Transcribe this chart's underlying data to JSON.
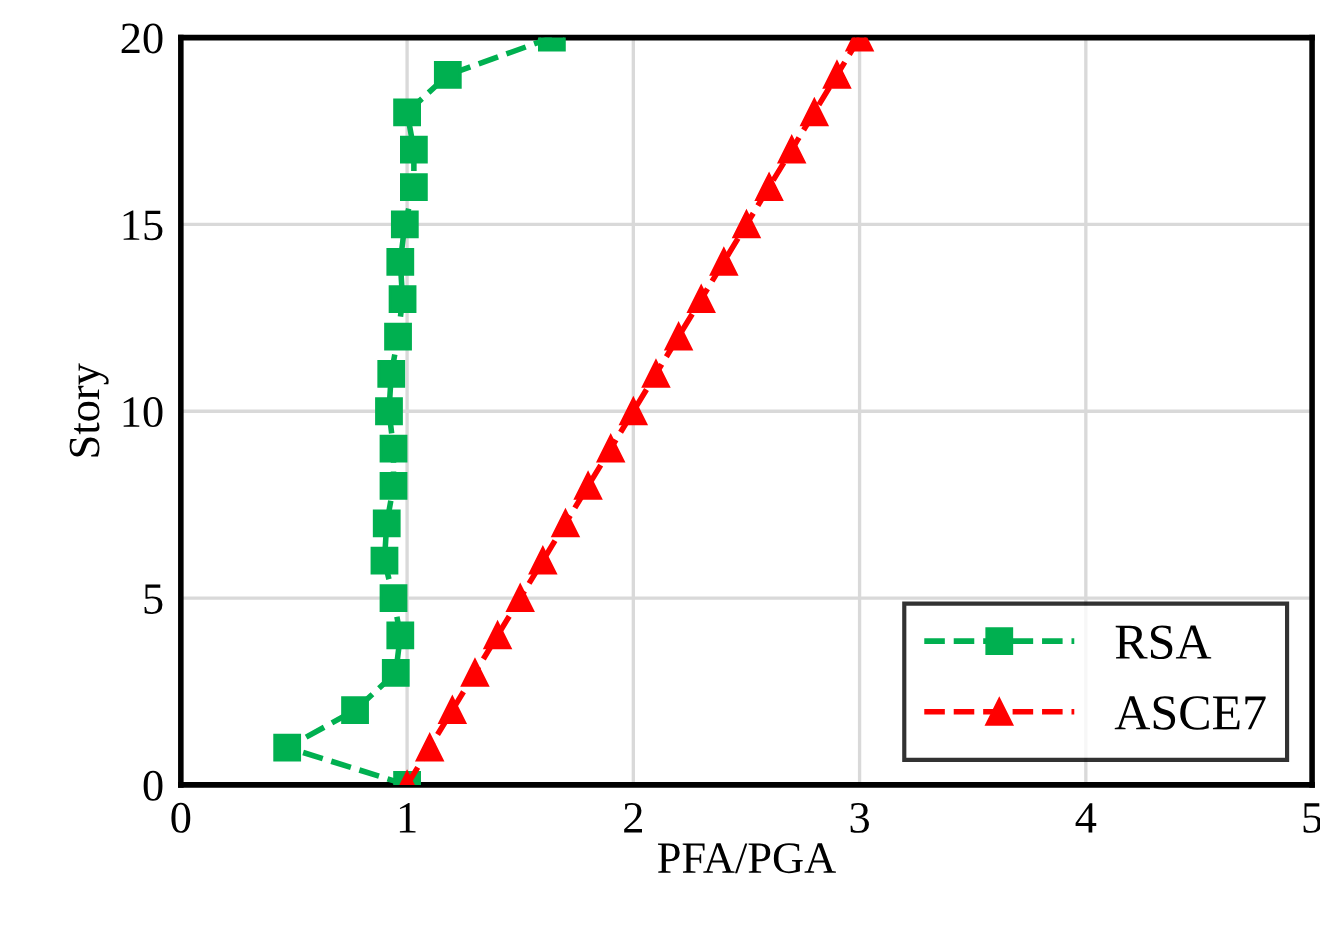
{
  "chart_data": {
    "type": "line",
    "xlabel": "PFA/PGA",
    "ylabel": "Story",
    "xlim": [
      0,
      5
    ],
    "xticks": [
      0,
      1,
      2,
      3,
      4,
      5
    ],
    "ylim": [
      0,
      20
    ],
    "yticks": [
      0,
      5,
      10,
      15,
      20
    ],
    "grid": true,
    "legend": "bottom right",
    "line_style": "dashed",
    "series": [
      {
        "name": "RSA",
        "color": "#00b050",
        "marker": "square",
        "x": [
          1.0,
          0.47,
          0.77,
          0.95,
          0.97,
          0.94,
          0.9,
          0.91,
          0.94,
          0.94,
          0.92,
          0.93,
          0.96,
          0.98,
          0.97,
          0.99,
          1.03,
          1.03,
          1.0,
          1.18,
          1.64
        ],
        "values": [
          0,
          1,
          2,
          3,
          4,
          5,
          6,
          7,
          8,
          9,
          10,
          11,
          12,
          13,
          14,
          15,
          16,
          17,
          18,
          19,
          20
        ]
      },
      {
        "name": "ASCE7",
        "color": "#ff0000",
        "marker": "triangle",
        "x": [
          1.0,
          1.1,
          1.2,
          1.3,
          1.4,
          1.5,
          1.6,
          1.7,
          1.8,
          1.9,
          2.0,
          2.1,
          2.2,
          2.3,
          2.4,
          2.5,
          2.6,
          2.7,
          2.8,
          2.9,
          3.0
        ],
        "values": [
          0,
          1,
          2,
          3,
          4,
          5,
          6,
          7,
          8,
          9,
          10,
          11,
          12,
          13,
          14,
          15,
          16,
          17,
          18,
          19,
          20
        ]
      }
    ]
  }
}
